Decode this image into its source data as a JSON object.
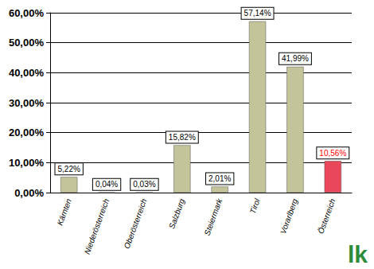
{
  "chart_data": {
    "type": "bar",
    "categories": [
      "Kärnten",
      "Niederösterreich",
      "Oberösterreich",
      "Salzburg",
      "Steiermark",
      "Tirol",
      "Vorarlberg",
      "Österreich"
    ],
    "values": [
      5.22,
      0.04,
      0.03,
      15.82,
      2.01,
      57.14,
      41.99,
      10.56
    ],
    "value_labels": [
      "5,22%",
      "0,04%",
      "0,03%",
      "15,82%",
      "2,01%",
      "57,14%",
      "41,99%",
      "10,56%"
    ],
    "colors": [
      "#c4c49a",
      "#c4c49a",
      "#c4c49a",
      "#c4c49a",
      "#c4c49a",
      "#c4c49a",
      "#c4c49a",
      "#e8485a"
    ],
    "ylim": [
      0,
      60
    ],
    "yticks": [
      {
        "value": 0,
        "label": "0,00%"
      },
      {
        "value": 10,
        "label": "10,00%"
      },
      {
        "value": 20,
        "label": "20,00%"
      },
      {
        "value": 30,
        "label": "30,00%"
      },
      {
        "value": 40,
        "label": "40,00%"
      },
      {
        "value": 50,
        "label": "50,00%"
      },
      {
        "value": 60,
        "label": "60,00%"
      }
    ],
    "grid": true,
    "data_labels": true,
    "annotations": [
      "lk"
    ]
  }
}
